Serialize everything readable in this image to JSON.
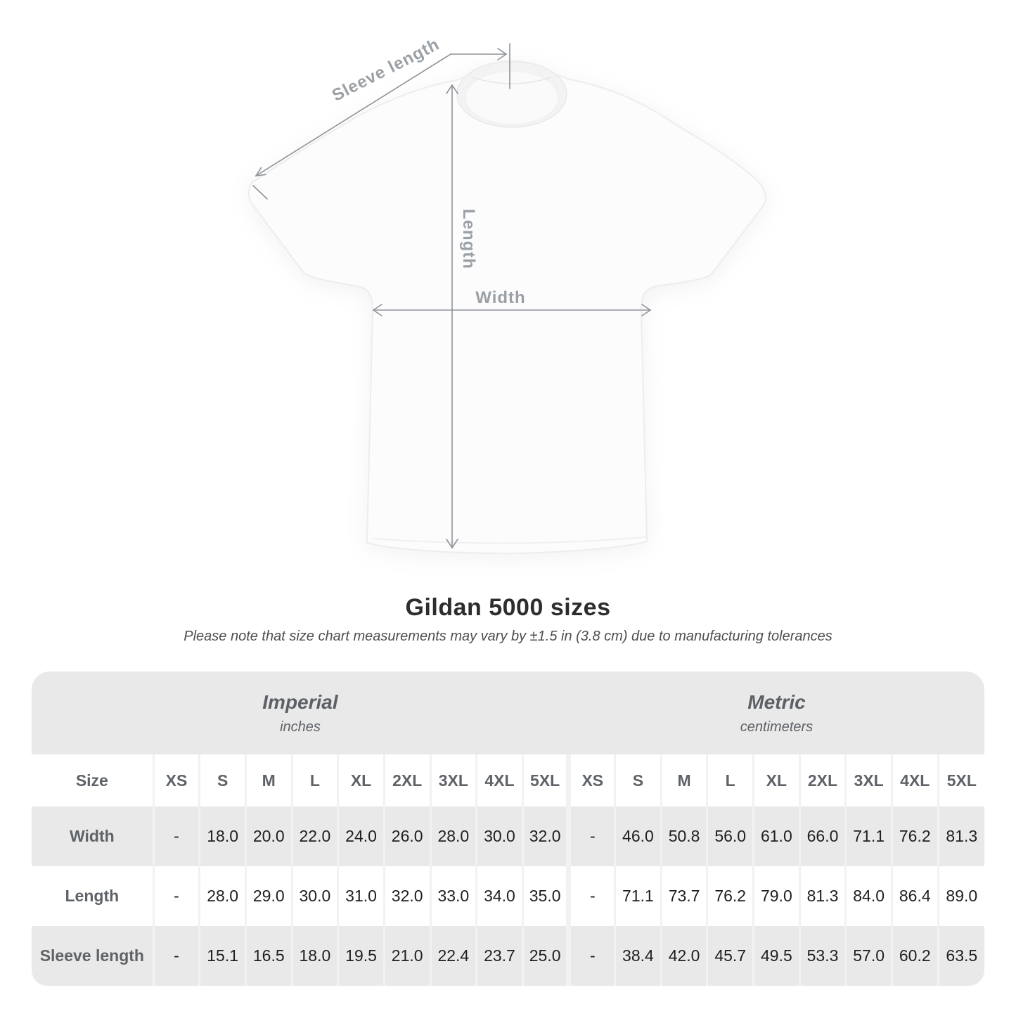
{
  "diagram": {
    "sleeve_length_label": "Sleeve length",
    "length_label": "Length",
    "width_label": "Width"
  },
  "title": "Gildan 5000 sizes",
  "subtitle": "Please note that size chart measurements may vary by ±1.5 in (3.8 cm) due to manufacturing tolerances",
  "table": {
    "size_header": "Size",
    "groups": [
      {
        "name": "Imperial",
        "unit": "inches"
      },
      {
        "name": "Metric",
        "unit": "centimeters"
      }
    ],
    "sizes": [
      "XS",
      "S",
      "M",
      "L",
      "XL",
      "2XL",
      "3XL",
      "4XL",
      "5XL"
    ],
    "rows": [
      {
        "label": "Width",
        "values": [
          "-",
          "18.0",
          "20.0",
          "22.0",
          "24.0",
          "26.0",
          "28.0",
          "30.0",
          "32.0",
          "-",
          "46.0",
          "50.8",
          "56.0",
          "61.0",
          "66.0",
          "71.1",
          "76.2",
          "81.3"
        ]
      },
      {
        "label": "Length",
        "values": [
          "-",
          "28.0",
          "29.0",
          "30.0",
          "31.0",
          "32.0",
          "33.0",
          "34.0",
          "35.0",
          "-",
          "71.1",
          "73.7",
          "76.2",
          "79.0",
          "81.3",
          "84.0",
          "86.4",
          "89.0"
        ]
      },
      {
        "label": "Sleeve length",
        "values": [
          "-",
          "15.1",
          "16.5",
          "18.0",
          "19.5",
          "21.0",
          "22.4",
          "23.7",
          "25.0",
          "-",
          "38.4",
          "42.0",
          "45.7",
          "49.5",
          "53.3",
          "57.0",
          "60.2",
          "63.5"
        ]
      }
    ]
  },
  "colors": {
    "row_gray": "#e9e9e9",
    "separator": "#f2f2f2",
    "header_text": "#5f6368",
    "data_text": "#1f1f1f",
    "diagram_gray": "#9aa0a5",
    "arrow_gray": "#8f9499"
  },
  "chart_data": {
    "type": "table",
    "title": "Gildan 5000 sizes",
    "note": "Please note that size chart measurements may vary by ±1.5 in (3.8 cm) due to manufacturing tolerances",
    "unit_groups": [
      {
        "name": "Imperial",
        "unit": "inches",
        "sizes": [
          "XS",
          "S",
          "M",
          "L",
          "XL",
          "2XL",
          "3XL",
          "4XL",
          "5XL"
        ]
      },
      {
        "name": "Metric",
        "unit": "centimeters",
        "sizes": [
          "XS",
          "S",
          "M",
          "L",
          "XL",
          "2XL",
          "3XL",
          "4XL",
          "5XL"
        ]
      }
    ],
    "rows": [
      {
        "measurement": "Width",
        "imperial": [
          null,
          18.0,
          20.0,
          22.0,
          24.0,
          26.0,
          28.0,
          30.0,
          32.0
        ],
        "metric": [
          null,
          46.0,
          50.8,
          56.0,
          61.0,
          66.0,
          71.1,
          76.2,
          81.3
        ]
      },
      {
        "measurement": "Length",
        "imperial": [
          null,
          28.0,
          29.0,
          30.0,
          31.0,
          32.0,
          33.0,
          34.0,
          35.0
        ],
        "metric": [
          null,
          71.1,
          73.7,
          76.2,
          79.0,
          81.3,
          84.0,
          86.4,
          89.0
        ]
      },
      {
        "measurement": "Sleeve length",
        "imperial": [
          null,
          15.1,
          16.5,
          18.0,
          19.5,
          21.0,
          22.4,
          23.7,
          25.0
        ],
        "metric": [
          null,
          38.4,
          42.0,
          45.7,
          49.5,
          53.3,
          57.0,
          60.2,
          63.5
        ]
      }
    ]
  }
}
